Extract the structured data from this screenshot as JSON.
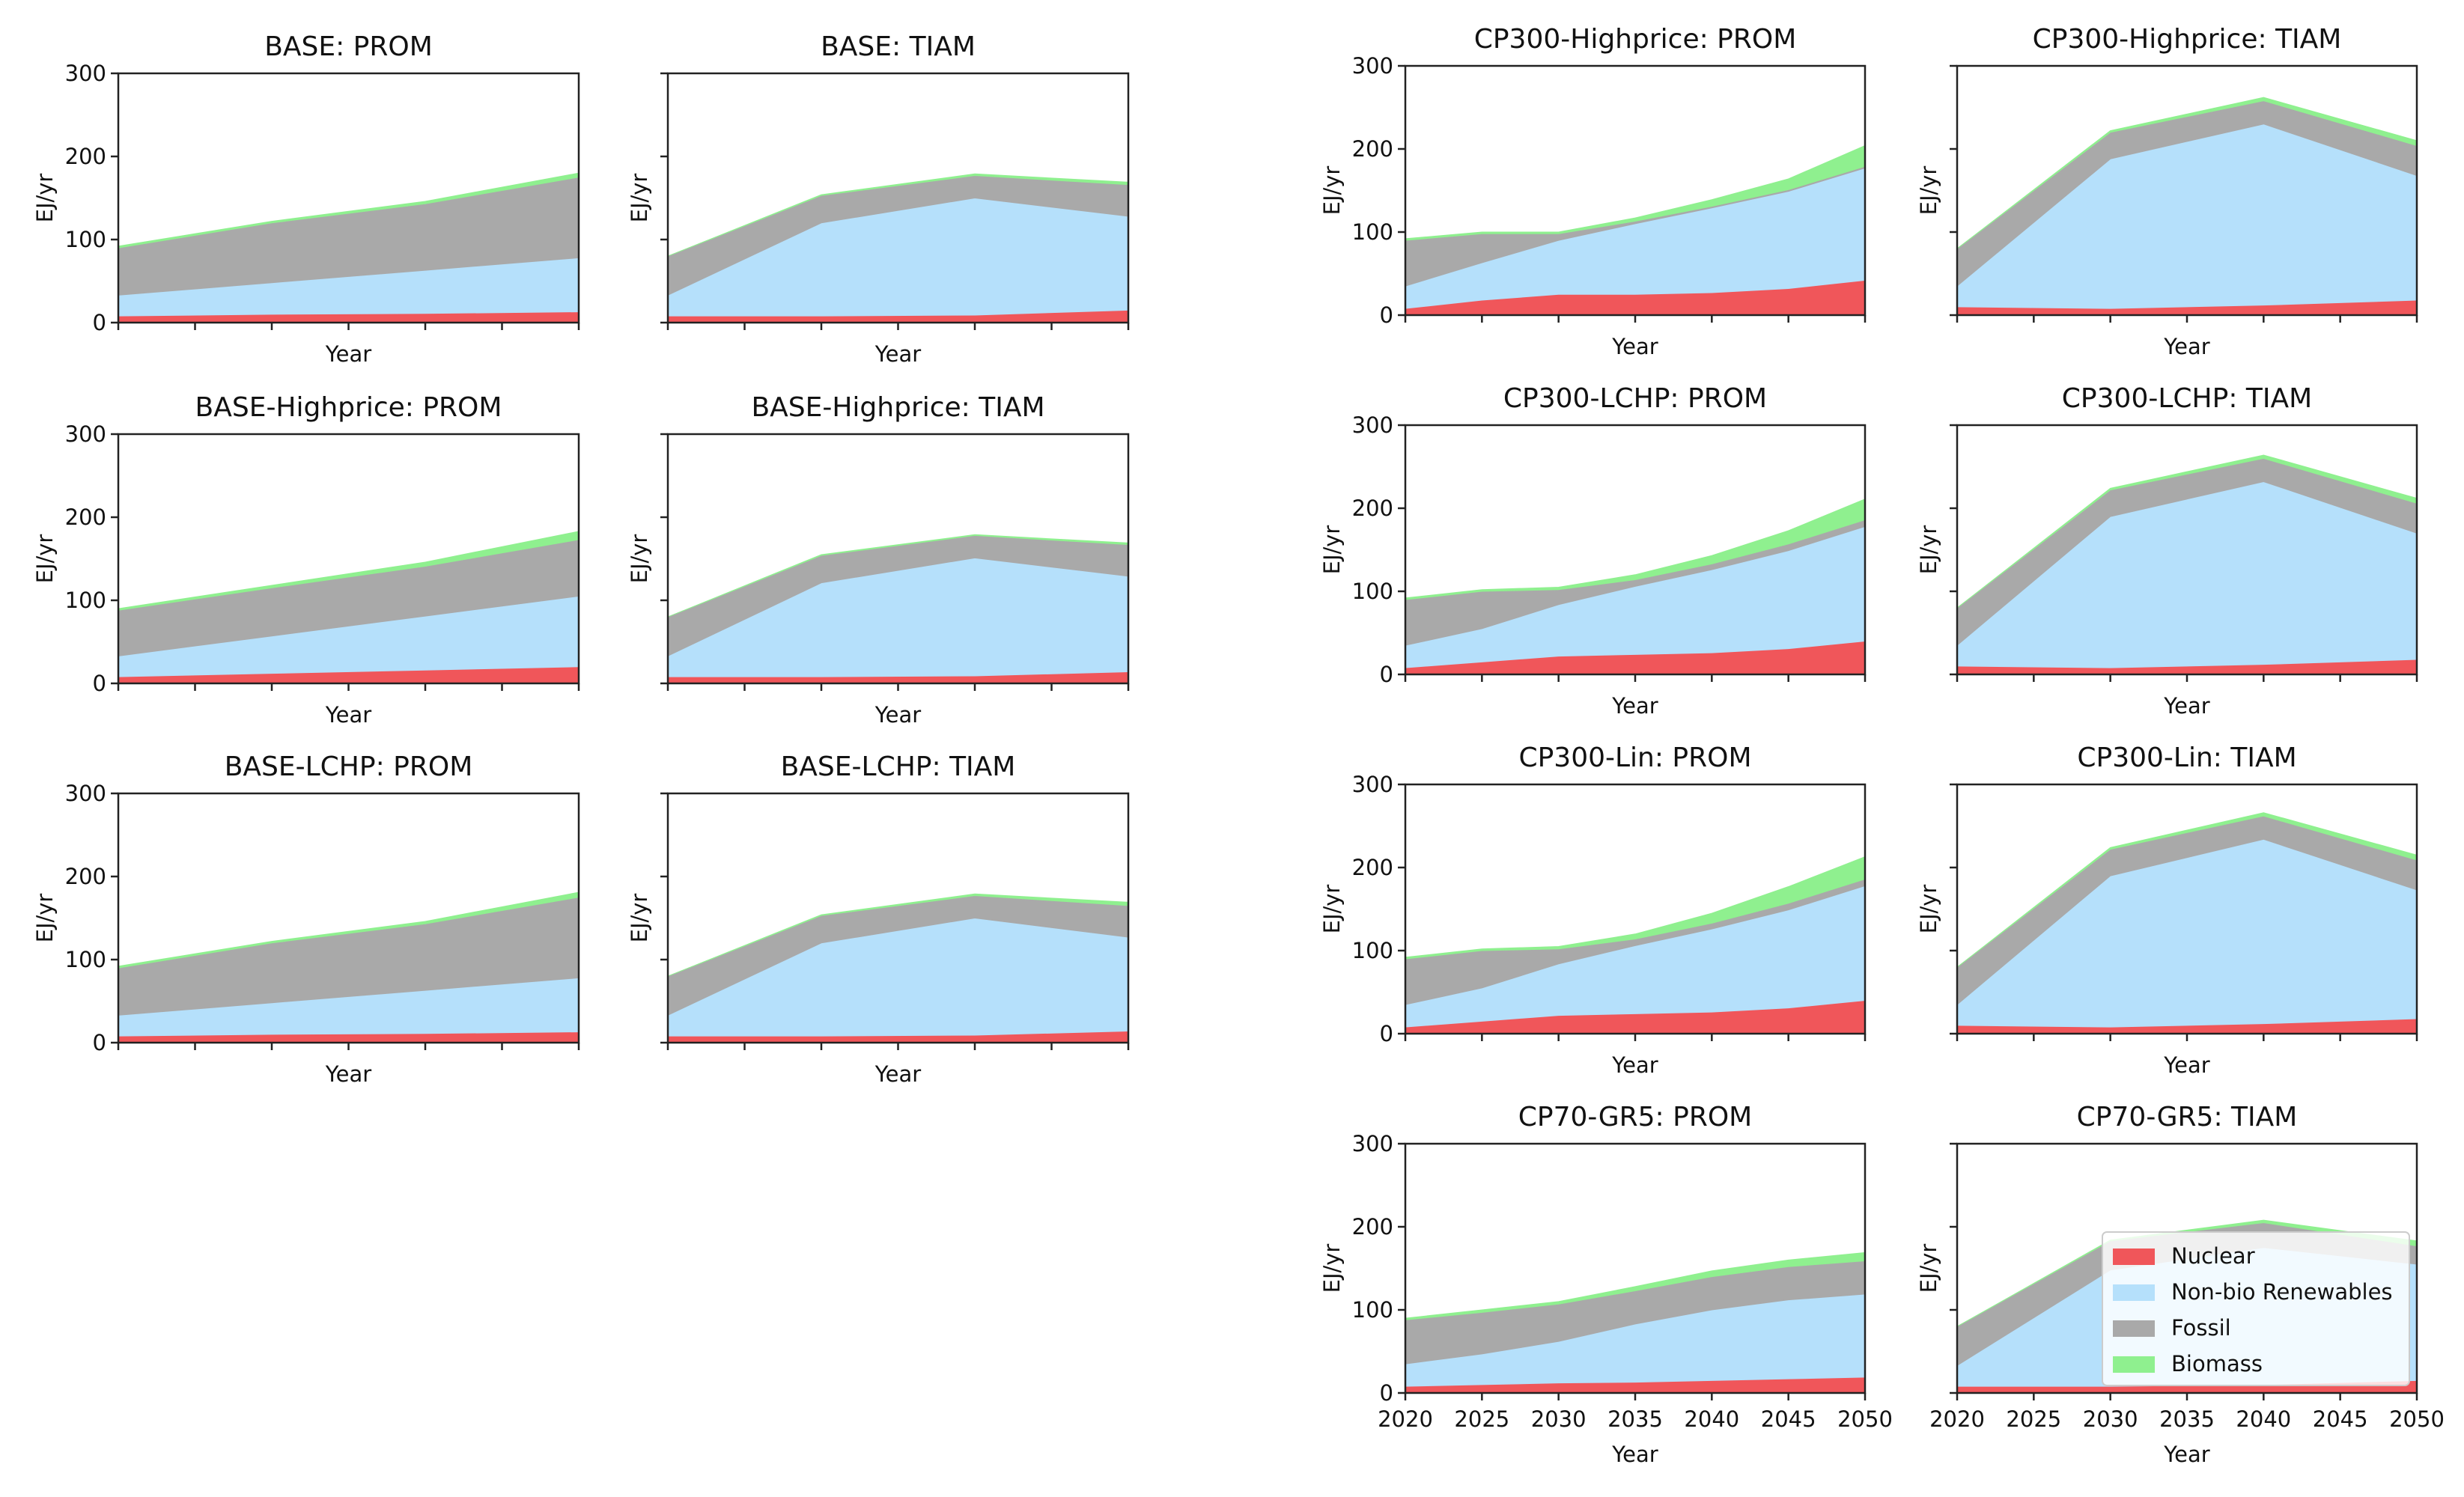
{
  "figure": {
    "type": "stacked area",
    "series_order": [
      "Nuclear",
      "Non-bio Renewables",
      "Fossil",
      "Biomass"
    ],
    "colors": {
      "Nuclear": "#f0565a",
      "Non-bio Renewables": "#b5e0fb",
      "Fossil": "#a9a9a9",
      "Biomass": "#8ff08f"
    },
    "legend": [
      "Nuclear",
      "Non-bio Renewables",
      "Fossil",
      "Biomass"
    ]
  },
  "chart_data": [
    {
      "id": "base-prom",
      "type": "area",
      "title": "BASE: PROM",
      "xlabel": "Year",
      "ylabel": "EJ/yr",
      "ylim": [
        0,
        300
      ],
      "xlim": [
        2020,
        2050
      ],
      "x": [
        2020,
        2030,
        2040,
        2050
      ],
      "yticks": [
        0,
        100,
        200,
        300
      ],
      "show_ytick_labels": true,
      "show_xtick_labels": false,
      "series": [
        {
          "name": "Nuclear",
          "values": [
            8,
            10,
            11,
            13
          ]
        },
        {
          "name": "Non-bio Renewables",
          "values": [
            25,
            38,
            52,
            65
          ]
        },
        {
          "name": "Fossil",
          "values": [
            57,
            72,
            80,
            97
          ]
        },
        {
          "name": "Biomass",
          "values": [
            2,
            2,
            3,
            5
          ]
        }
      ]
    },
    {
      "id": "base-tiam",
      "type": "area",
      "title": "BASE: TIAM",
      "xlabel": "Year",
      "ylabel": "EJ/yr",
      "ylim": [
        0,
        300
      ],
      "xlim": [
        2020,
        2050
      ],
      "x": [
        2020,
        2030,
        2040,
        2050
      ],
      "yticks": [
        0,
        100,
        200,
        300
      ],
      "show_ytick_labels": false,
      "show_xtick_labels": false,
      "series": [
        {
          "name": "Nuclear",
          "values": [
            8,
            8,
            9,
            15
          ]
        },
        {
          "name": "Non-bio Renewables",
          "values": [
            25,
            112,
            141,
            113
          ]
        },
        {
          "name": "Fossil",
          "values": [
            47,
            33,
            27,
            38
          ]
        },
        {
          "name": "Biomass",
          "values": [
            0,
            1,
            2,
            3
          ]
        }
      ]
    },
    {
      "id": "base-highprice-prom",
      "type": "area",
      "title": "BASE-Highprice: PROM",
      "xlabel": "Year",
      "ylabel": "EJ/yr",
      "ylim": [
        0,
        300
      ],
      "xlim": [
        2020,
        2050
      ],
      "x": [
        2020,
        2030,
        2040,
        2050
      ],
      "yticks": [
        0,
        100,
        200,
        300
      ],
      "show_ytick_labels": true,
      "show_xtick_labels": false,
      "series": [
        {
          "name": "Nuclear",
          "values": [
            8,
            12,
            16,
            20
          ]
        },
        {
          "name": "Non-bio Renewables",
          "values": [
            25,
            45,
            65,
            85
          ]
        },
        {
          "name": "Fossil",
          "values": [
            55,
            58,
            60,
            68
          ]
        },
        {
          "name": "Biomass",
          "values": [
            2,
            3,
            5,
            10
          ]
        }
      ]
    },
    {
      "id": "base-highprice-tiam",
      "type": "area",
      "title": "BASE-Highprice: TIAM",
      "xlabel": "Year",
      "ylabel": "EJ/yr",
      "ylim": [
        0,
        300
      ],
      "xlim": [
        2020,
        2050
      ],
      "x": [
        2020,
        2030,
        2040,
        2050
      ],
      "yticks": [
        0,
        100,
        200,
        300
      ],
      "show_ytick_labels": false,
      "show_xtick_labels": false,
      "series": [
        {
          "name": "Nuclear",
          "values": [
            8,
            8,
            9,
            14
          ]
        },
        {
          "name": "Non-bio Renewables",
          "values": [
            25,
            113,
            142,
            115
          ]
        },
        {
          "name": "Fossil",
          "values": [
            47,
            33,
            27,
            38
          ]
        },
        {
          "name": "Biomass",
          "values": [
            0,
            1,
            1,
            2
          ]
        }
      ]
    },
    {
      "id": "base-lchp-prom",
      "type": "area",
      "title": "BASE-LCHP: PROM",
      "xlabel": "Year",
      "ylabel": "EJ/yr",
      "ylim": [
        0,
        300
      ],
      "xlim": [
        2020,
        2050
      ],
      "x": [
        2020,
        2030,
        2040,
        2050
      ],
      "yticks": [
        0,
        100,
        200,
        300
      ],
      "show_ytick_labels": true,
      "show_xtick_labels": false,
      "series": [
        {
          "name": "Nuclear",
          "values": [
            8,
            10,
            11,
            13
          ]
        },
        {
          "name": "Non-bio Renewables",
          "values": [
            25,
            38,
            52,
            65
          ]
        },
        {
          "name": "Fossil",
          "values": [
            57,
            72,
            80,
            97
          ]
        },
        {
          "name": "Biomass",
          "values": [
            2,
            2,
            3,
            6
          ]
        }
      ]
    },
    {
      "id": "base-lchp-tiam",
      "type": "area",
      "title": "BASE-LCHP: TIAM",
      "xlabel": "Year",
      "ylabel": "EJ/yr",
      "ylim": [
        0,
        300
      ],
      "xlim": [
        2020,
        2050
      ],
      "x": [
        2020,
        2030,
        2040,
        2050
      ],
      "yticks": [
        0,
        100,
        200,
        300
      ],
      "show_ytick_labels": false,
      "show_xtick_labels": false,
      "series": [
        {
          "name": "Nuclear",
          "values": [
            8,
            8,
            9,
            14
          ]
        },
        {
          "name": "Non-bio Renewables",
          "values": [
            25,
            112,
            141,
            113
          ]
        },
        {
          "name": "Fossil",
          "values": [
            47,
            33,
            27,
            38
          ]
        },
        {
          "name": "Biomass",
          "values": [
            0,
            1,
            2,
            4
          ]
        }
      ]
    },
    {
      "id": "cp300-highprice-prom",
      "type": "area",
      "title": "CP300-Highprice: PROM",
      "xlabel": "Year",
      "ylabel": "EJ/yr",
      "ylim": [
        0,
        300
      ],
      "xlim": [
        2020,
        2050
      ],
      "x": [
        2020,
        2025,
        2030,
        2035,
        2040,
        2045,
        2050
      ],
      "yticks": [
        0,
        100,
        200,
        300
      ],
      "show_ytick_labels": true,
      "show_xtick_labels": false,
      "series": [
        {
          "name": "Nuclear",
          "values": [
            8,
            18,
            25,
            25,
            27,
            32,
            42
          ]
        },
        {
          "name": "Non-bio Renewables",
          "values": [
            27,
            45,
            65,
            85,
            102,
            117,
            135
          ]
        },
        {
          "name": "Fossil",
          "values": [
            55,
            35,
            8,
            3,
            2,
            2,
            2
          ]
        },
        {
          "name": "Biomass",
          "values": [
            2,
            2,
            2,
            4,
            8,
            13,
            25
          ]
        }
      ]
    },
    {
      "id": "cp300-highprice-tiam",
      "type": "area",
      "title": "CP300-Highprice: TIAM",
      "xlabel": "Year",
      "ylabel": "EJ/yr",
      "ylim": [
        0,
        300
      ],
      "xlim": [
        2020,
        2050
      ],
      "x": [
        2020,
        2030,
        2040,
        2050
      ],
      "yticks": [
        0,
        100,
        200,
        300
      ],
      "show_ytick_labels": false,
      "show_xtick_labels": false,
      "series": [
        {
          "name": "Nuclear",
          "values": [
            10,
            8,
            12,
            18
          ]
        },
        {
          "name": "Non-bio Renewables",
          "values": [
            25,
            180,
            218,
            150
          ]
        },
        {
          "name": "Fossil",
          "values": [
            45,
            32,
            28,
            36
          ]
        },
        {
          "name": "Biomass",
          "values": [
            0,
            2,
            4,
            6
          ]
        }
      ]
    },
    {
      "id": "cp300-lchp-prom",
      "type": "area",
      "title": "CP300-LCHP: PROM",
      "xlabel": "Year",
      "ylabel": "EJ/yr",
      "ylim": [
        0,
        300
      ],
      "xlim": [
        2020,
        2050
      ],
      "x": [
        2020,
        2025,
        2030,
        2035,
        2040,
        2045,
        2050
      ],
      "yticks": [
        0,
        100,
        200,
        300
      ],
      "show_ytick_labels": true,
      "show_xtick_labels": false,
      "series": [
        {
          "name": "Nuclear",
          "values": [
            8,
            15,
            22,
            24,
            26,
            31,
            40
          ]
        },
        {
          "name": "Non-bio Renewables",
          "values": [
            27,
            40,
            62,
            82,
            100,
            118,
            138
          ]
        },
        {
          "name": "Fossil",
          "values": [
            55,
            45,
            18,
            8,
            7,
            8,
            8
          ]
        },
        {
          "name": "Biomass",
          "values": [
            2,
            2,
            3,
            6,
            10,
            16,
            25
          ]
        }
      ]
    },
    {
      "id": "cp300-lchp-tiam",
      "type": "area",
      "title": "CP300-LCHP: TIAM",
      "xlabel": "Year",
      "ylabel": "EJ/yr",
      "ylim": [
        0,
        300
      ],
      "xlim": [
        2020,
        2050
      ],
      "x": [
        2020,
        2030,
        2040,
        2050
      ],
      "yticks": [
        0,
        100,
        200,
        300
      ],
      "show_ytick_labels": false,
      "show_xtick_labels": false,
      "series": [
        {
          "name": "Nuclear",
          "values": [
            10,
            8,
            12,
            18
          ]
        },
        {
          "name": "Non-bio Renewables",
          "values": [
            25,
            182,
            220,
            152
          ]
        },
        {
          "name": "Fossil",
          "values": [
            45,
            32,
            28,
            36
          ]
        },
        {
          "name": "Biomass",
          "values": [
            0,
            2,
            4,
            6
          ]
        }
      ]
    },
    {
      "id": "cp300-lin-prom",
      "type": "area",
      "title": "CP300-Lin: PROM",
      "xlabel": "Year",
      "ylabel": "EJ/yr",
      "ylim": [
        0,
        300
      ],
      "xlim": [
        2020,
        2050
      ],
      "x": [
        2020,
        2025,
        2030,
        2035,
        2040,
        2045,
        2050
      ],
      "yticks": [
        0,
        100,
        200,
        300
      ],
      "show_ytick_labels": true,
      "show_xtick_labels": false,
      "series": [
        {
          "name": "Nuclear",
          "values": [
            8,
            15,
            22,
            24,
            26,
            31,
            40
          ]
        },
        {
          "name": "Non-bio Renewables",
          "values": [
            27,
            40,
            62,
            82,
            100,
            118,
            138
          ]
        },
        {
          "name": "Fossil",
          "values": [
            55,
            45,
            18,
            8,
            7,
            8,
            8
          ]
        },
        {
          "name": "Biomass",
          "values": [
            2,
            2,
            3,
            6,
            12,
            20,
            27
          ]
        }
      ]
    },
    {
      "id": "cp300-lin-tiam",
      "type": "area",
      "title": "CP300-Lin: TIAM",
      "xlabel": "Year",
      "ylabel": "EJ/yr",
      "ylim": [
        0,
        300
      ],
      "xlim": [
        2020,
        2050
      ],
      "x": [
        2020,
        2030,
        2040,
        2050
      ],
      "yticks": [
        0,
        100,
        200,
        300
      ],
      "show_ytick_labels": false,
      "show_xtick_labels": false,
      "series": [
        {
          "name": "Nuclear",
          "values": [
            10,
            8,
            12,
            18
          ]
        },
        {
          "name": "Non-bio Renewables",
          "values": [
            25,
            182,
            222,
            155
          ]
        },
        {
          "name": "Fossil",
          "values": [
            45,
            32,
            28,
            36
          ]
        },
        {
          "name": "Biomass",
          "values": [
            0,
            2,
            4,
            6
          ]
        }
      ]
    },
    {
      "id": "cp70-gr5-prom",
      "type": "area",
      "title": "CP70-GR5: PROM",
      "xlabel": "Year",
      "ylabel": "EJ/yr",
      "ylim": [
        0,
        300
      ],
      "xlim": [
        2020,
        2050
      ],
      "x": [
        2020,
        2025,
        2030,
        2035,
        2040,
        2045,
        2050
      ],
      "yticks": [
        0,
        100,
        200,
        300
      ],
      "xticks": [
        2020,
        2025,
        2030,
        2035,
        2040,
        2045,
        2050
      ],
      "show_ytick_labels": true,
      "show_xtick_labels": true,
      "series": [
        {
          "name": "Nuclear",
          "values": [
            8,
            10,
            12,
            13,
            15,
            17,
            19
          ]
        },
        {
          "name": "Non-bio Renewables",
          "values": [
            27,
            37,
            50,
            70,
            85,
            95,
            100
          ]
        },
        {
          "name": "Fossil",
          "values": [
            53,
            50,
            45,
            40,
            40,
            40,
            40
          ]
        },
        {
          "name": "Biomass",
          "values": [
            2,
            3,
            3,
            5,
            7,
            8,
            10
          ]
        }
      ]
    },
    {
      "id": "cp70-gr5-tiam",
      "type": "area",
      "title": "CP70-GR5: TIAM",
      "xlabel": "Year",
      "ylabel": "EJ/yr",
      "ylim": [
        0,
        300
      ],
      "xlim": [
        2020,
        2050
      ],
      "x": [
        2020,
        2030,
        2040,
        2050
      ],
      "yticks": [
        0,
        100,
        200,
        300
      ],
      "xticks": [
        2020,
        2025,
        2030,
        2035,
        2040,
        2045,
        2050
      ],
      "show_ytick_labels": false,
      "show_xtick_labels": true,
      "legend": true,
      "series": [
        {
          "name": "Nuclear",
          "values": [
            8,
            8,
            10,
            15
          ]
        },
        {
          "name": "Non-bio Renewables",
          "values": [
            25,
            140,
            165,
            140
          ]
        },
        {
          "name": "Fossil",
          "values": [
            47,
            35,
            30,
            22
          ]
        },
        {
          "name": "Biomass",
          "values": [
            0,
            1,
            3,
            6
          ]
        }
      ]
    }
  ]
}
